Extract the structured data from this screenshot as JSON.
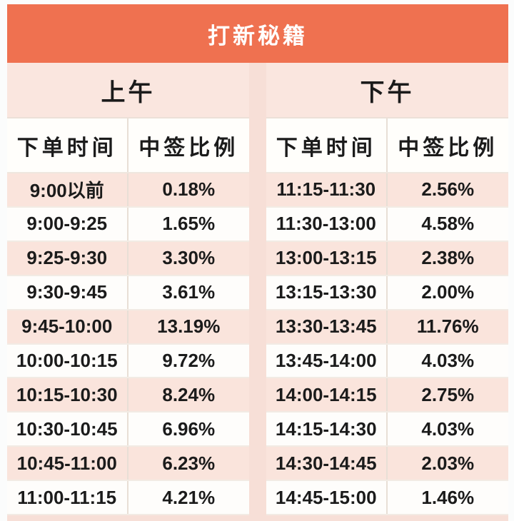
{
  "title": "打新秘籍",
  "colors": {
    "banner": "#EF7150",
    "banner_text": "#FFFFFF",
    "panel_header_pink": "#FAE6DF",
    "row_pink": "#FAE4DC",
    "row_white": "#FEFDFB",
    "background_pink": "#F7DFD7",
    "text": "#1B1B1B"
  },
  "chart_data": [
    {
      "type": "table",
      "title": "上午",
      "columns": [
        "下单时间",
        "中签比例"
      ],
      "rows": [
        [
          "9:00以前",
          "0.18%"
        ],
        [
          "9:00-9:25",
          "1.65%"
        ],
        [
          "9:25-9:30",
          "3.30%"
        ],
        [
          "9:30-9:45",
          "3.61%"
        ],
        [
          "9:45-10:00",
          "13.19%"
        ],
        [
          "10:00-10:15",
          "9.72%"
        ],
        [
          "10:15-10:30",
          "8.24%"
        ],
        [
          "10:30-10:45",
          "6.96%"
        ],
        [
          "10:45-11:00",
          "6.23%"
        ],
        [
          "11:00-11:15",
          "4.21%"
        ]
      ]
    },
    {
      "type": "table",
      "title": "下午",
      "columns": [
        "下单时间",
        "中签比例"
      ],
      "rows": [
        [
          "11:15-11:30",
          "2.56%"
        ],
        [
          "11:30-13:00",
          "4.58%"
        ],
        [
          "13:00-13:15",
          "2.38%"
        ],
        [
          "13:15-13:30",
          "2.00%"
        ],
        [
          "13:30-13:45",
          "11.76%"
        ],
        [
          "13:45-14:00",
          "4.03%"
        ],
        [
          "14:00-14:15",
          "2.75%"
        ],
        [
          "14:15-14:30",
          "4.03%"
        ],
        [
          "14:30-14:45",
          "2.03%"
        ],
        [
          "14:45-15:00",
          "1.46%"
        ]
      ]
    }
  ]
}
